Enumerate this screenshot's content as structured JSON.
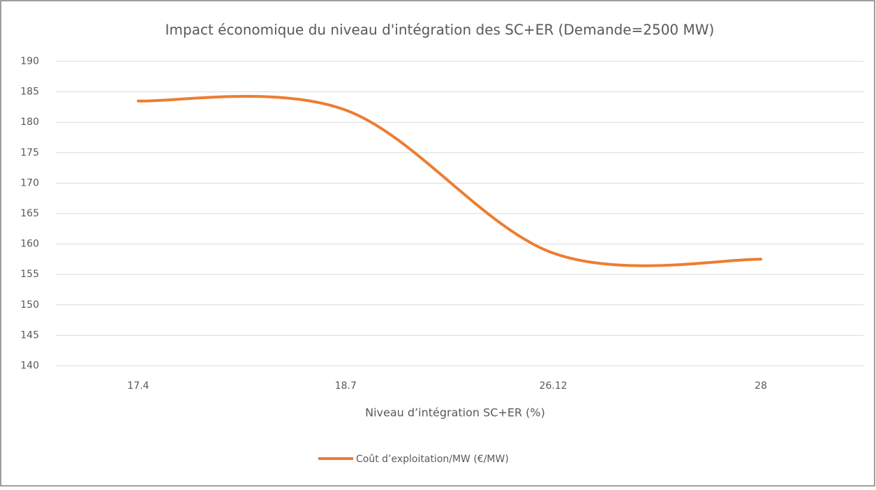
{
  "chart_data": {
    "type": "line",
    "title": "Impact économique du niveau d'intégration des SC+ER (Demande=2500 MW)",
    "x_label": "Niveau d’intégration SC+ER (%)",
    "categories": [
      "17.4",
      "18.7",
      "26.12",
      "28"
    ],
    "series": [
      {
        "name": "Coût d’exploitation/MW (€/MW)",
        "color": "#ed7d31",
        "values": [
          183.5,
          182,
          158.5,
          157.5
        ]
      }
    ],
    "ylim": [
      140,
      190
    ],
    "yticks": [
      140,
      145,
      150,
      155,
      160,
      165,
      170,
      175,
      180,
      185,
      190
    ],
    "grid": true,
    "smooth": true,
    "legend": "bottom"
  }
}
